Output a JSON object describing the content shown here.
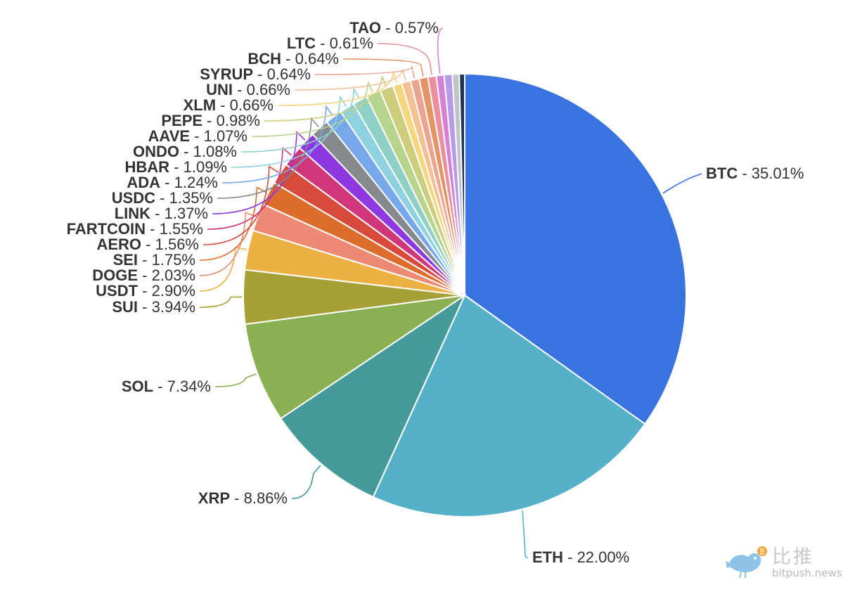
{
  "chart_data": {
    "type": "pie",
    "start_angle_deg": 0,
    "direction": "clockwise",
    "legend": "none",
    "slices": [
      {
        "label": "BTC",
        "value_text": "35.01%",
        "value": 35.01,
        "color": "#3873e0"
      },
      {
        "label": "ETH",
        "value_text": "22.00%",
        "value": 22.0,
        "color": "#55b1c8"
      },
      {
        "label": "XRP",
        "value_text": "8.86%",
        "value": 8.86,
        "color": "#469b9a"
      },
      {
        "label": "SOL",
        "value_text": "7.34%",
        "value": 7.34,
        "color": "#89b154"
      },
      {
        "label": "SUI",
        "value_text": "3.94%",
        "value": 3.94,
        "color": "#a6a036"
      },
      {
        "label": "USDT",
        "value_text": "2.90%",
        "value": 2.9,
        "color": "#ecb043"
      },
      {
        "label": "DOGE",
        "value_text": "2.03%",
        "value": 2.03,
        "color": "#ec8a73"
      },
      {
        "label": "SEI",
        "value_text": "1.75%",
        "value": 1.75,
        "color": "#db6e2c"
      },
      {
        "label": "AERO",
        "value_text": "1.56%",
        "value": 1.56,
        "color": "#d74a3c"
      },
      {
        "label": "FARTCOIN",
        "value_text": "1.55%",
        "value": 1.55,
        "color": "#d0377a"
      },
      {
        "label": "LINK",
        "value_text": "1.37%",
        "value": 1.37,
        "color": "#8e38e2"
      },
      {
        "label": "USDC",
        "value_text": "1.35%",
        "value": 1.35,
        "color": "#848a8e"
      },
      {
        "label": "ADA",
        "value_text": "1.24%",
        "value": 1.24,
        "color": "#76a8ea"
      },
      {
        "label": "HBAR",
        "value_text": "1.09%",
        "value": 1.09,
        "color": "#8ed2e2"
      },
      {
        "label": "ONDO",
        "value_text": "1.08%",
        "value": 1.08,
        "color": "#8ed0c5"
      },
      {
        "label": "AAVE",
        "value_text": "1.07%",
        "value": 1.07,
        "color": "#b6d48c"
      },
      {
        "label": "PEPE",
        "value_text": "0.98%",
        "value": 0.98,
        "color": "#cccd7d"
      },
      {
        "label": "XLM",
        "value_text": "0.66%",
        "value": 0.66,
        "color": "#f3d67d"
      },
      {
        "label": "UNI",
        "value_text": "0.66%",
        "value": 0.66,
        "color": "#f5c095"
      },
      {
        "label": "SYRUP",
        "value_text": "0.64%",
        "value": 0.64,
        "color": "#eaa48f"
      },
      {
        "label": "BCH",
        "value_text": "0.64%",
        "value": 0.64,
        "color": "#e49565"
      },
      {
        "label": "LTC",
        "value_text": "0.61%",
        "value": 0.61,
        "color": "#ea8ea0"
      },
      {
        "label": "TAO",
        "value_text": "0.57%",
        "value": 0.57,
        "color": "#d582d3"
      },
      {
        "label": "",
        "value_text": "",
        "value": 0.6,
        "color": "#b79be8"
      },
      {
        "label": "",
        "value_text": "",
        "value": 0.5,
        "color": "#c0c4c9"
      },
      {
        "label": "",
        "value_text": "",
        "value": 0.4,
        "color": "#1e3554"
      }
    ]
  },
  "watermark": {
    "title": "比推",
    "domain": "bitpush.news"
  }
}
